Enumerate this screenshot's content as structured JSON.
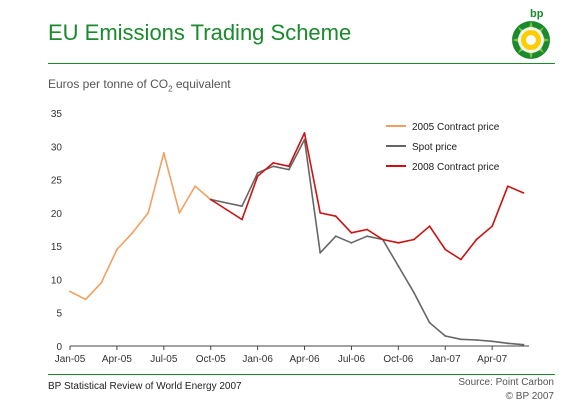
{
  "header": {
    "title": "EU Emissions Trading Scheme",
    "logo_text": "bp",
    "subtitle_pre": "Euros per tonne of CO",
    "subtitle_sub": "2",
    "subtitle_post": " equivalent"
  },
  "footer": {
    "left": "BP Statistical Review of World Energy 2007",
    "source": "Source: Point Carbon",
    "copyright": "© BP 2007"
  },
  "colors": {
    "brand_green": "#1a8a2c",
    "contract_2005": "#f0a060",
    "spot": "#666666",
    "contract_2008": "#cc1111"
  },
  "chart_data": {
    "type": "line",
    "x_ticks": [
      "Jan-05",
      "Apr-05",
      "Jul-05",
      "Oct-05",
      "Jan-06",
      "Apr-06",
      "Jul-06",
      "Oct-06",
      "Jan-07",
      "Apr-07"
    ],
    "y_ticks": [
      0,
      5,
      10,
      15,
      20,
      25,
      30,
      35
    ],
    "ylim": [
      0,
      35
    ],
    "legend_position": "top-right",
    "series": [
      {
        "name": "2005 Contract price",
        "color": "#f0a060",
        "x": [
          "Jan-05",
          "Feb-05",
          "Mar-05",
          "Apr-05",
          "May-05",
          "Jun-05",
          "Jul-05",
          "Aug-05",
          "Sep-05",
          "Oct-05"
        ],
        "values": [
          8.2,
          7.0,
          9.5,
          14.5,
          17.0,
          20.0,
          29.0,
          20.0,
          24.0,
          22.0
        ]
      },
      {
        "name": "Spot price",
        "color": "#666666",
        "x": [
          "Oct-05",
          "Nov-05",
          "Dec-05",
          "Jan-06",
          "Feb-06",
          "Mar-06",
          "Apr-06",
          "May-06",
          "Jun-06",
          "Jul-06",
          "Aug-06",
          "Sep-06",
          "Oct-06",
          "Nov-06",
          "Dec-06",
          "Jan-07",
          "Feb-07",
          "Mar-07",
          "Apr-07",
          "May-07",
          "Jun-07"
        ],
        "values": [
          22.0,
          21.5,
          21.0,
          26.0,
          27.0,
          26.5,
          31.0,
          14.0,
          16.5,
          15.5,
          16.5,
          16.0,
          12.0,
          8.0,
          3.5,
          1.5,
          1.0,
          0.9,
          0.7,
          0.4,
          0.2
        ]
      },
      {
        "name": "2008 Contract price",
        "color": "#cc1111",
        "x": [
          "Oct-05",
          "Nov-05",
          "Dec-05",
          "Jan-06",
          "Feb-06",
          "Mar-06",
          "Apr-06",
          "May-06",
          "Jun-06",
          "Jul-06",
          "Aug-06",
          "Sep-06",
          "Oct-06",
          "Nov-06",
          "Dec-06",
          "Jan-07",
          "Feb-07",
          "Mar-07",
          "Apr-07",
          "May-07",
          "Jun-07"
        ],
        "values": [
          22.0,
          20.5,
          19.0,
          25.5,
          27.5,
          27.0,
          32.0,
          20.0,
          19.5,
          17.0,
          17.5,
          16.0,
          15.5,
          16.0,
          18.0,
          14.5,
          13.0,
          16.0,
          18.0,
          24.0,
          23.0
        ]
      }
    ]
  }
}
